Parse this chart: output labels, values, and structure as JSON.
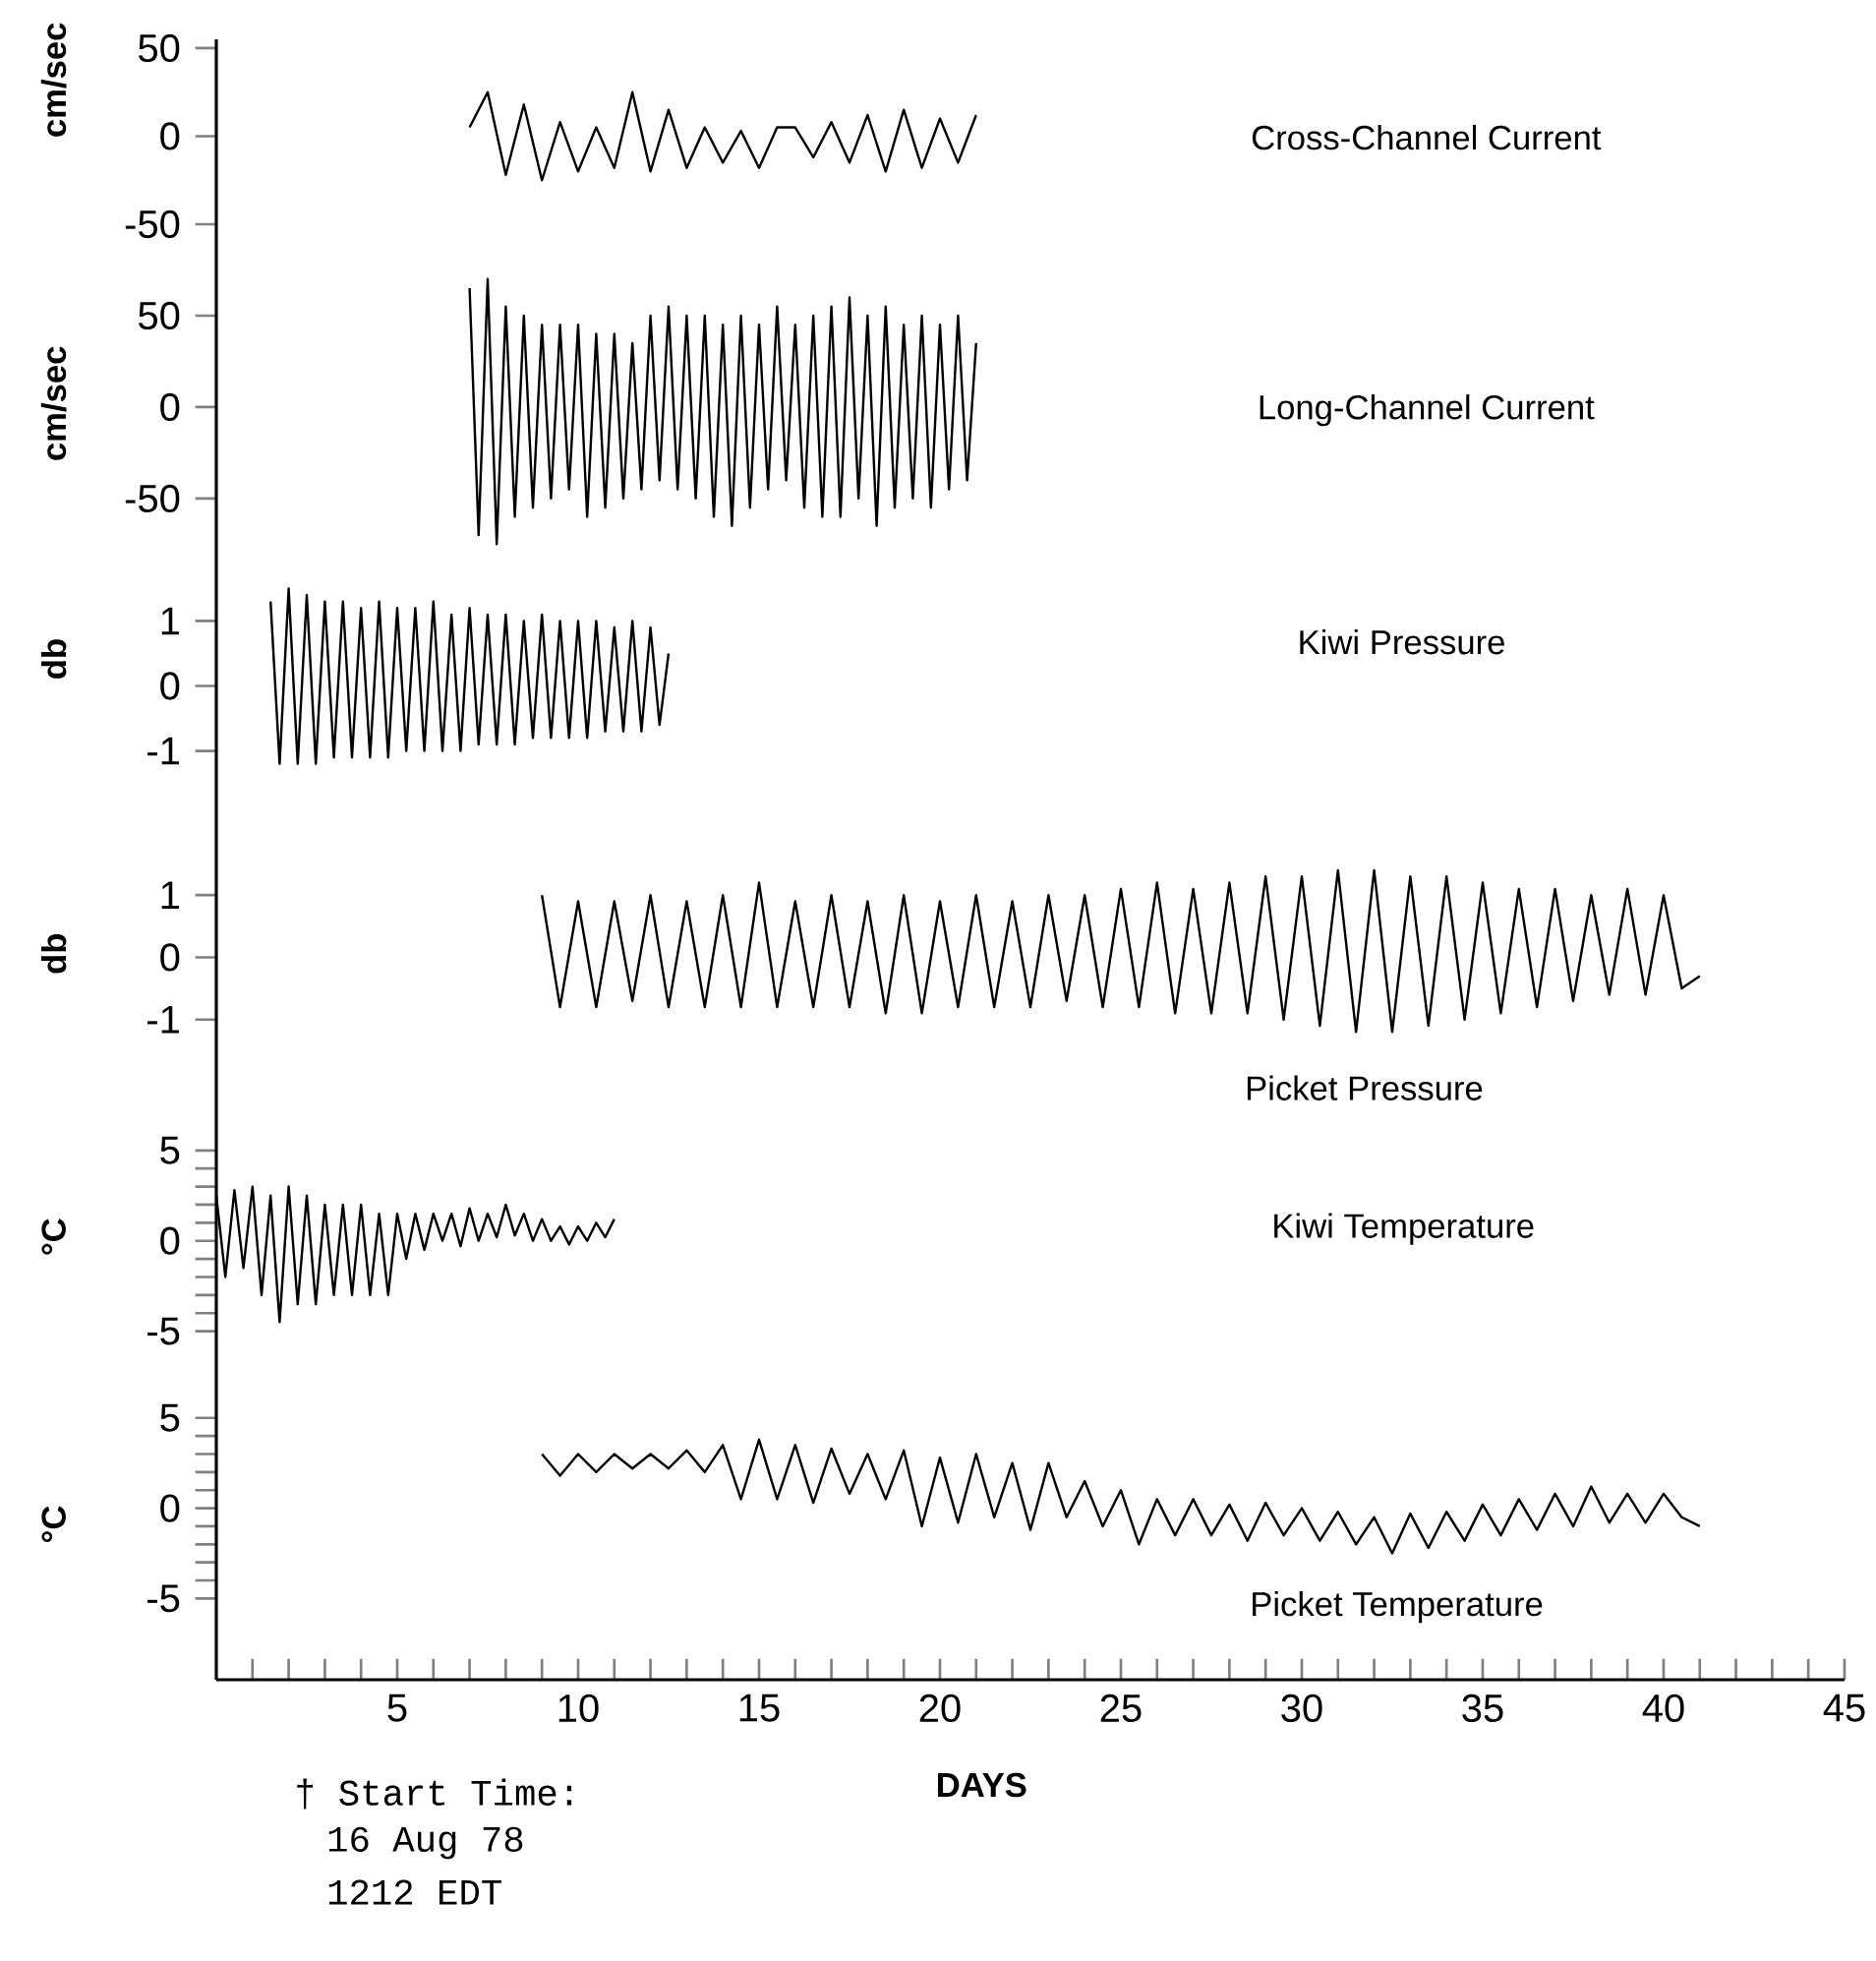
{
  "chart_data": [
    {
      "type": "line",
      "xlim": [
        0,
        45
      ],
      "ylim": [
        -50,
        55
      ],
      "yticks": [
        -50,
        0,
        50
      ],
      "ylabel": "cm/sec",
      "tick_labels": "y",
      "series": [
        {
          "name": "Cross-Channel Current",
          "color": "#000000",
          "x": [
            7.0,
            7.5,
            8.0,
            8.5,
            9.0,
            9.5,
            10.0,
            10.5,
            11.0,
            11.5,
            12.0,
            12.5,
            13.0,
            13.5,
            14.0,
            14.5,
            15.0,
            15.5,
            16.0,
            16.5,
            17.0,
            17.5,
            18.0,
            18.5,
            19.0,
            19.5,
            20.0,
            20.5,
            21.0
          ],
          "values": [
            5,
            25,
            -22,
            18,
            -25,
            8,
            -20,
            5,
            -18,
            25,
            -20,
            15,
            -18,
            5,
            -15,
            3,
            -18,
            5,
            5,
            -12,
            8,
            -15,
            12,
            -20,
            15,
            -18,
            10,
            -15,
            12
          ]
        }
      ]
    },
    {
      "type": "line",
      "xlim": [
        0,
        45
      ],
      "ylim": [
        -85,
        100
      ],
      "yticks": [
        -50,
        0,
        50
      ],
      "ylabel": "cm/sec",
      "tick_labels": "y",
      "series": [
        {
          "name": "Long-Channel Current",
          "color": "#000000",
          "x": [
            7.0,
            7.25,
            7.5,
            7.75,
            8.0,
            8.25,
            8.5,
            8.75,
            9.0,
            9.25,
            9.5,
            9.75,
            10.0,
            10.25,
            10.5,
            10.75,
            11.0,
            11.25,
            11.5,
            11.75,
            12.0,
            12.25,
            12.5,
            12.75,
            13.0,
            13.25,
            13.5,
            13.75,
            14.0,
            14.25,
            14.5,
            14.75,
            15.0,
            15.25,
            15.5,
            15.75,
            16.0,
            16.25,
            16.5,
            16.75,
            17.0,
            17.25,
            17.5,
            17.75,
            18.0,
            18.25,
            18.5,
            18.75,
            19.0,
            19.25,
            19.5,
            19.75,
            20.0,
            20.25,
            20.5,
            20.75,
            21.0
          ],
          "values": [
            65,
            -70,
            70,
            -75,
            55,
            -60,
            50,
            -55,
            45,
            -50,
            45,
            -45,
            45,
            -60,
            40,
            -55,
            40,
            -50,
            35,
            -45,
            50,
            -40,
            55,
            -45,
            50,
            -50,
            50,
            -60,
            45,
            -65,
            50,
            -55,
            45,
            -45,
            55,
            -40,
            45,
            -55,
            50,
            -60,
            55,
            -60,
            60,
            -50,
            50,
            -65,
            55,
            -55,
            45,
            -50,
            50,
            -55,
            45,
            -45,
            50,
            -40,
            35
          ]
        }
      ]
    },
    {
      "type": "line",
      "xlim": [
        0,
        45
      ],
      "ylim": [
        -1.4,
        1.9
      ],
      "yticks": [
        -1,
        0,
        1
      ],
      "ylabel": "db",
      "tick_labels": "y",
      "series": [
        {
          "name": "Kiwi Pressure",
          "color": "#000000",
          "x": [
            1.5,
            1.75,
            2.0,
            2.25,
            2.5,
            2.75,
            3.0,
            3.25,
            3.5,
            3.75,
            4.0,
            4.25,
            4.5,
            4.75,
            5.0,
            5.25,
            5.5,
            5.75,
            6.0,
            6.25,
            6.5,
            6.75,
            7.0,
            7.25,
            7.5,
            7.75,
            8.0,
            8.25,
            8.5,
            8.75,
            9.0,
            9.25,
            9.5,
            9.75,
            10.0,
            10.25,
            10.5,
            10.75,
            11.0,
            11.25,
            11.5,
            11.75,
            12.0,
            12.25,
            12.5
          ],
          "values": [
            1.3,
            -1.2,
            1.5,
            -1.2,
            1.4,
            -1.2,
            1.3,
            -1.1,
            1.3,
            -1.1,
            1.2,
            -1.1,
            1.3,
            -1.1,
            1.2,
            -1.0,
            1.2,
            -1.0,
            1.3,
            -1.0,
            1.1,
            -1.0,
            1.2,
            -0.9,
            1.1,
            -0.9,
            1.1,
            -0.9,
            1.0,
            -0.8,
            1.1,
            -0.8,
            1.0,
            -0.8,
            1.0,
            -0.8,
            1.0,
            -0.7,
            0.9,
            -0.7,
            1.0,
            -0.7,
            0.9,
            -0.6,
            0.5
          ]
        }
      ]
    },
    {
      "type": "line",
      "xlim": [
        0,
        45
      ],
      "ylim": [
        -2,
        2.9
      ],
      "yticks": [
        -1,
        0,
        1
      ],
      "ylabel": "db",
      "tick_labels": "y",
      "series": [
        {
          "name": "Picket Pressure",
          "color": "#000000",
          "x": [
            9.0,
            9.5,
            10.0,
            10.5,
            11.0,
            11.5,
            12.0,
            12.5,
            13.0,
            13.5,
            14.0,
            14.5,
            15.0,
            15.5,
            16.0,
            16.5,
            17.0,
            17.5,
            18.0,
            18.5,
            19.0,
            19.5,
            20.0,
            20.5,
            21.0,
            21.5,
            22.0,
            22.5,
            23.0,
            23.5,
            24.0,
            24.5,
            25.0,
            25.5,
            26.0,
            26.5,
            27.0,
            27.5,
            28.0,
            28.5,
            29.0,
            29.5,
            30.0,
            30.5,
            31.0,
            31.5,
            32.0,
            32.5,
            33.0,
            33.5,
            34.0,
            34.5,
            35.0,
            35.5,
            36.0,
            36.5,
            37.0,
            37.5,
            38.0,
            38.5,
            39.0,
            39.5,
            40.0,
            40.5,
            41.0
          ],
          "values": [
            1.0,
            -0.8,
            0.9,
            -0.8,
            0.9,
            -0.7,
            1.0,
            -0.8,
            0.9,
            -0.8,
            1.0,
            -0.8,
            1.2,
            -0.8,
            0.9,
            -0.8,
            1.0,
            -0.8,
            0.9,
            -0.9,
            1.0,
            -0.9,
            0.9,
            -0.8,
            1.0,
            -0.8,
            0.9,
            -0.8,
            1.0,
            -0.7,
            1.0,
            -0.8,
            1.1,
            -0.8,
            1.2,
            -0.9,
            1.1,
            -0.9,
            1.2,
            -0.9,
            1.3,
            -1.0,
            1.3,
            -1.1,
            1.4,
            -1.2,
            1.4,
            -1.2,
            1.3,
            -1.1,
            1.3,
            -1.0,
            1.2,
            -0.9,
            1.1,
            -0.8,
            1.1,
            -0.7,
            1.0,
            -0.6,
            1.1,
            -0.6,
            1.0,
            -0.5,
            -0.3
          ]
        }
      ]
    },
    {
      "type": "line",
      "xlim": [
        0,
        45
      ],
      "ylim": [
        -6,
        8.8
      ],
      "yticks": [
        -5,
        {
          "value": -4,
          "label": null
        },
        {
          "value": -3,
          "label": null
        },
        {
          "value": -2,
          "label": null
        },
        {
          "value": -1,
          "label": null
        },
        0,
        {
          "value": 1,
          "label": null
        },
        {
          "value": 2,
          "label": null
        },
        {
          "value": 3,
          "label": null
        },
        {
          "value": 4,
          "label": null
        },
        5
      ],
      "ylabel": "°C",
      "tick_labels": "y",
      "series": [
        {
          "name": "Kiwi Temperature",
          "color": "#000000",
          "x": [
            0.0,
            0.25,
            0.5,
            0.75,
            1.0,
            1.25,
            1.5,
            1.75,
            2.0,
            2.25,
            2.5,
            2.75,
            3.0,
            3.25,
            3.5,
            3.75,
            4.0,
            4.25,
            4.5,
            4.75,
            5.0,
            5.25,
            5.5,
            5.75,
            6.0,
            6.25,
            6.5,
            6.75,
            7.0,
            7.25,
            7.5,
            7.75,
            8.0,
            8.25,
            8.5,
            8.75,
            9.0,
            9.25,
            9.5,
            9.75,
            10.0,
            10.25,
            10.5,
            10.75,
            11.0
          ],
          "values": [
            2.5,
            -2.0,
            2.8,
            -1.5,
            3.0,
            -3.0,
            2.5,
            -4.5,
            3.0,
            -3.5,
            2.5,
            -3.5,
            2.0,
            -3.0,
            2.0,
            -3.0,
            2.0,
            -3.0,
            1.5,
            -3.0,
            1.5,
            -1.0,
            1.5,
            -0.5,
            1.5,
            0.0,
            1.5,
            -0.3,
            1.8,
            0.0,
            1.5,
            0.2,
            2.0,
            0.3,
            1.5,
            0.0,
            1.2,
            0.0,
            0.8,
            -0.2,
            0.8,
            0.0,
            1.0,
            0.2,
            1.2
          ]
        }
      ]
    },
    {
      "type": "line",
      "xlim": [
        0,
        45
      ],
      "ylim": [
        -9.5,
        8.8
      ],
      "yticks": [
        -5,
        {
          "value": -4,
          "label": null
        },
        {
          "value": -3,
          "label": null
        },
        {
          "value": -2,
          "label": null
        },
        {
          "value": -1,
          "label": null
        },
        0,
        {
          "value": 1,
          "label": null
        },
        {
          "value": 2,
          "label": null
        },
        {
          "value": 3,
          "label": null
        },
        {
          "value": 4,
          "label": null
        },
        5
      ],
      "ylabel": "°C",
      "xlabel": "DAYS",
      "xticks": [
        {
          "value": 1,
          "label": null
        },
        {
          "value": 2,
          "label": null
        },
        {
          "value": 3,
          "label": null
        },
        {
          "value": 4,
          "label": null
        },
        5,
        {
          "value": 6,
          "label": null
        },
        {
          "value": 7,
          "label": null
        },
        {
          "value": 8,
          "label": null
        },
        {
          "value": 9,
          "label": null
        },
        10,
        {
          "value": 11,
          "label": null
        },
        {
          "value": 12,
          "label": null
        },
        {
          "value": 13,
          "label": null
        },
        {
          "value": 14,
          "label": null
        },
        15,
        {
          "value": 16,
          "label": null
        },
        {
          "value": 17,
          "label": null
        },
        {
          "value": 18,
          "label": null
        },
        {
          "value": 19,
          "label": null
        },
        20,
        {
          "value": 21,
          "label": null
        },
        {
          "value": 22,
          "label": null
        },
        {
          "value": 23,
          "label": null
        },
        {
          "value": 24,
          "label": null
        },
        25,
        {
          "value": 26,
          "label": null
        },
        {
          "value": 27,
          "label": null
        },
        {
          "value": 28,
          "label": null
        },
        {
          "value": 29,
          "label": null
        },
        30,
        {
          "value": 31,
          "label": null
        },
        {
          "value": 32,
          "label": null
        },
        {
          "value": 33,
          "label": null
        },
        {
          "value": 34,
          "label": null
        },
        35,
        {
          "value": 36,
          "label": null
        },
        {
          "value": 37,
          "label": null
        },
        {
          "value": 38,
          "label": null
        },
        {
          "value": 39,
          "label": null
        },
        40,
        {
          "value": 41,
          "label": null
        },
        {
          "value": 42,
          "label": null
        },
        {
          "value": 43,
          "label": null
        },
        {
          "value": 44,
          "label": null
        },
        45
      ],
      "annotations": [
        "† Start Time:",
        "16 Aug 78",
        "1212 EDT"
      ],
      "series": [
        {
          "name": "Picket Temperature",
          "color": "#000000",
          "x": [
            9.0,
            9.5,
            10.0,
            10.5,
            11.0,
            11.5,
            12.0,
            12.5,
            13.0,
            13.5,
            14.0,
            14.5,
            15.0,
            15.5,
            16.0,
            16.5,
            17.0,
            17.5,
            18.0,
            18.5,
            19.0,
            19.5,
            20.0,
            20.5,
            21.0,
            21.5,
            22.0,
            22.5,
            23.0,
            23.5,
            24.0,
            24.5,
            25.0,
            25.5,
            26.0,
            26.5,
            27.0,
            27.5,
            28.0,
            28.5,
            29.0,
            29.5,
            30.0,
            30.5,
            31.0,
            31.5,
            32.0,
            32.5,
            33.0,
            33.5,
            34.0,
            34.5,
            35.0,
            35.5,
            36.0,
            36.5,
            37.0,
            37.5,
            38.0,
            38.5,
            39.0,
            39.5,
            40.0,
            40.5,
            41.0
          ],
          "values": [
            3.0,
            1.8,
            3.0,
            2.0,
            3.0,
            2.2,
            3.0,
            2.2,
            3.2,
            2.0,
            3.5,
            0.5,
            3.8,
            0.5,
            3.5,
            0.3,
            3.3,
            0.8,
            3.0,
            0.5,
            3.2,
            -1.0,
            2.8,
            -0.8,
            3.0,
            -0.5,
            2.5,
            -1.2,
            2.5,
            -0.5,
            1.5,
            -1.0,
            1.0,
            -2.0,
            0.5,
            -1.5,
            0.5,
            -1.5,
            0.2,
            -1.8,
            0.3,
            -1.5,
            0.0,
            -1.8,
            -0.2,
            -2.0,
            -0.5,
            -2.5,
            -0.3,
            -2.2,
            -0.2,
            -1.8,
            0.2,
            -1.5,
            0.5,
            -1.2,
            0.8,
            -1.0,
            1.2,
            -0.8,
            0.8,
            -0.8,
            0.8,
            -0.5,
            -1.0
          ]
        }
      ]
    }
  ]
}
